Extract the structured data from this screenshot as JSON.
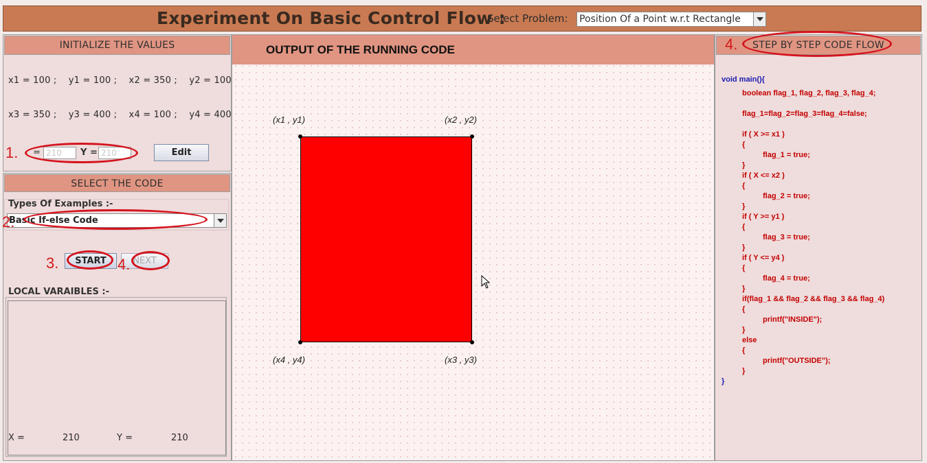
{
  "app": {
    "title": "Experiment On Basic Control Flow :",
    "select_problem_label": "Select Problem:",
    "problem_value": "Position Of a Point w.r.t Rectangle"
  },
  "left": {
    "init_header": "INITIALIZE THE VALUES",
    "values_row1": "x1 = 100 ;    y1 = 100 ;    x2 = 350 ;    y2 = 100 ;",
    "values_row2": "x3 = 350 ;    y3 = 400 ;    x4 = 100 ;    y4 = 400 ;",
    "x_eq_label": "=",
    "y_eq_label": "Y =",
    "x_input_placeholder": "210",
    "y_input_placeholder": "210",
    "edit_label": "Edit",
    "select_header": "SELECT THE CODE",
    "types_label": "Types Of Examples :-",
    "code_select_value": "Basic If-else Code",
    "start_label": "START",
    "next_label": "NEXT",
    "locals_label": "LOCAL VARAIBLES :-",
    "locals": {
      "x_label": "X =",
      "x_value": "210",
      "y_label": "Y =",
      "y_value": "210"
    }
  },
  "middle": {
    "title": "OUTPUT OF THE RUNNING CODE",
    "labels": {
      "tl": "(x1 , y1)",
      "tr": "(x2 , y2)",
      "bl": "(x4 , y4)",
      "br": "(x3 , y3)"
    },
    "rect_color": "#ff0000"
  },
  "right": {
    "header": "STEP BY STEP CODE FLOW",
    "code": [
      "void main(){",
      "boolean flag_1, flag_2, flag_3, flag_4;",
      "flag_1=flag_2=flag_3=flag_4=false;",
      "if ( X >= x1 )",
      "{",
      "flag_1 = true;",
      "}",
      "if ( X <= x2 )",
      "{",
      "flag_2 = true;",
      "}",
      "if ( Y >= y1 )",
      "{",
      "flag_3 = true;",
      "}",
      "if ( Y <= y4 )",
      "{",
      "flag_4 = true;",
      "}",
      "if(flag_1 && flag_2 && flag_3 && flag_4)",
      "{",
      "printf(\"INSIDE\");",
      "}",
      "else",
      "{",
      "printf(\"OUTSIDE\");",
      "}",
      "}"
    ]
  },
  "annotations": {
    "n1": "1.",
    "n2": "2.",
    "n3": "3.",
    "n4a": "4.",
    "n4b": "4."
  },
  "colors": {
    "title_bar": "#c97a52",
    "header": "#e09582",
    "panel": "#efdcdc",
    "annotation": "#d4141e"
  }
}
